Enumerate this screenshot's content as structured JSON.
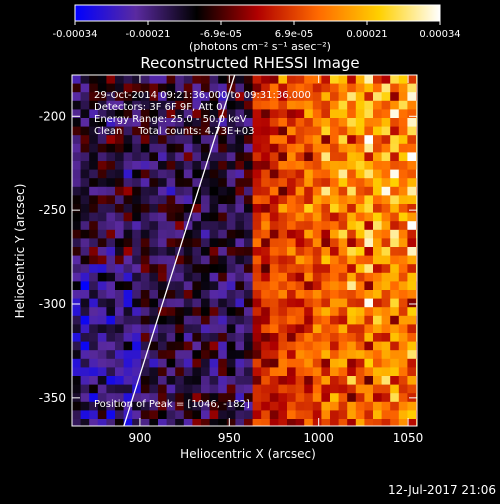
{
  "colorbar": {
    "tick_labels": [
      "-0.00034",
      "-0.00021",
      "-6.9e-05",
      "6.9e-05",
      "0.00021",
      "0.00034"
    ],
    "units_label": "(photons cm⁻² s⁻¹ asec⁻²)",
    "range": [
      -0.00034,
      0.00034
    ],
    "colormap": [
      "#0000ff",
      "#5a2aa0",
      "#000000",
      "#b00000",
      "#ff6a00",
      "#ffd000",
      "#ffffff"
    ]
  },
  "chart_data": {
    "type": "heatmap",
    "title": "Reconstructed RHESSI Image",
    "xlabel": "Heliocentric X (arcsec)",
    "ylabel": "Heliocentric Y (arcsec)",
    "xlim": [
      862,
      1055
    ],
    "ylim": [
      -365,
      -178
    ],
    "xticks": [
      900,
      950,
      1000,
      1050
    ],
    "yticks": [
      -200,
      -250,
      -300,
      -350
    ],
    "limb_line": [
      [
        891,
        -365
      ],
      [
        953,
        -178
      ]
    ],
    "peak_position": [
      1046,
      -182
    ],
    "info": {
      "line1": "29-Oct-2014 09:21:36.000 to 09:31:36.000",
      "line2": "Detectors: 3F 6F 9F, Att 0",
      "line3": "Energy Range: 25.0 - 50.0 keV",
      "line4": "Clean     Total counts: 4.73E+03",
      "peak_label": "Position of Peak = [1046, -182]"
    }
  },
  "footer": {
    "timestamp": "12-Jul-2017 21:06"
  }
}
